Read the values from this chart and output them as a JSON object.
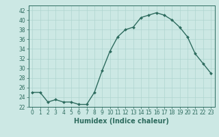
{
  "x": [
    0,
    1,
    2,
    3,
    4,
    5,
    6,
    7,
    8,
    9,
    10,
    11,
    12,
    13,
    14,
    15,
    16,
    17,
    18,
    19,
    20,
    21,
    22,
    23
  ],
  "y": [
    25,
    25,
    23,
    23.5,
    23,
    23,
    22.5,
    22.5,
    25,
    29.5,
    33.5,
    36.5,
    38,
    38.5,
    40.5,
    41,
    41.5,
    41,
    40,
    38.5,
    36.5,
    33,
    31,
    29
  ],
  "line_color": "#2d6b5e",
  "marker": "D",
  "marker_size": 2.0,
  "bg_color": "#cce8e4",
  "grid_color": "#aed4cf",
  "xlabel": "Humidex (Indice chaleur)",
  "xlim": [
    -0.5,
    23.5
  ],
  "ylim": [
    22,
    43
  ],
  "yticks": [
    22,
    24,
    26,
    28,
    30,
    32,
    34,
    36,
    38,
    40,
    42
  ],
  "xticks": [
    0,
    1,
    2,
    3,
    4,
    5,
    6,
    7,
    8,
    9,
    10,
    11,
    12,
    13,
    14,
    15,
    16,
    17,
    18,
    19,
    20,
    21,
    22,
    23
  ],
  "xlabel_fontsize": 7,
  "tick_fontsize": 5.5,
  "linewidth": 1.0
}
